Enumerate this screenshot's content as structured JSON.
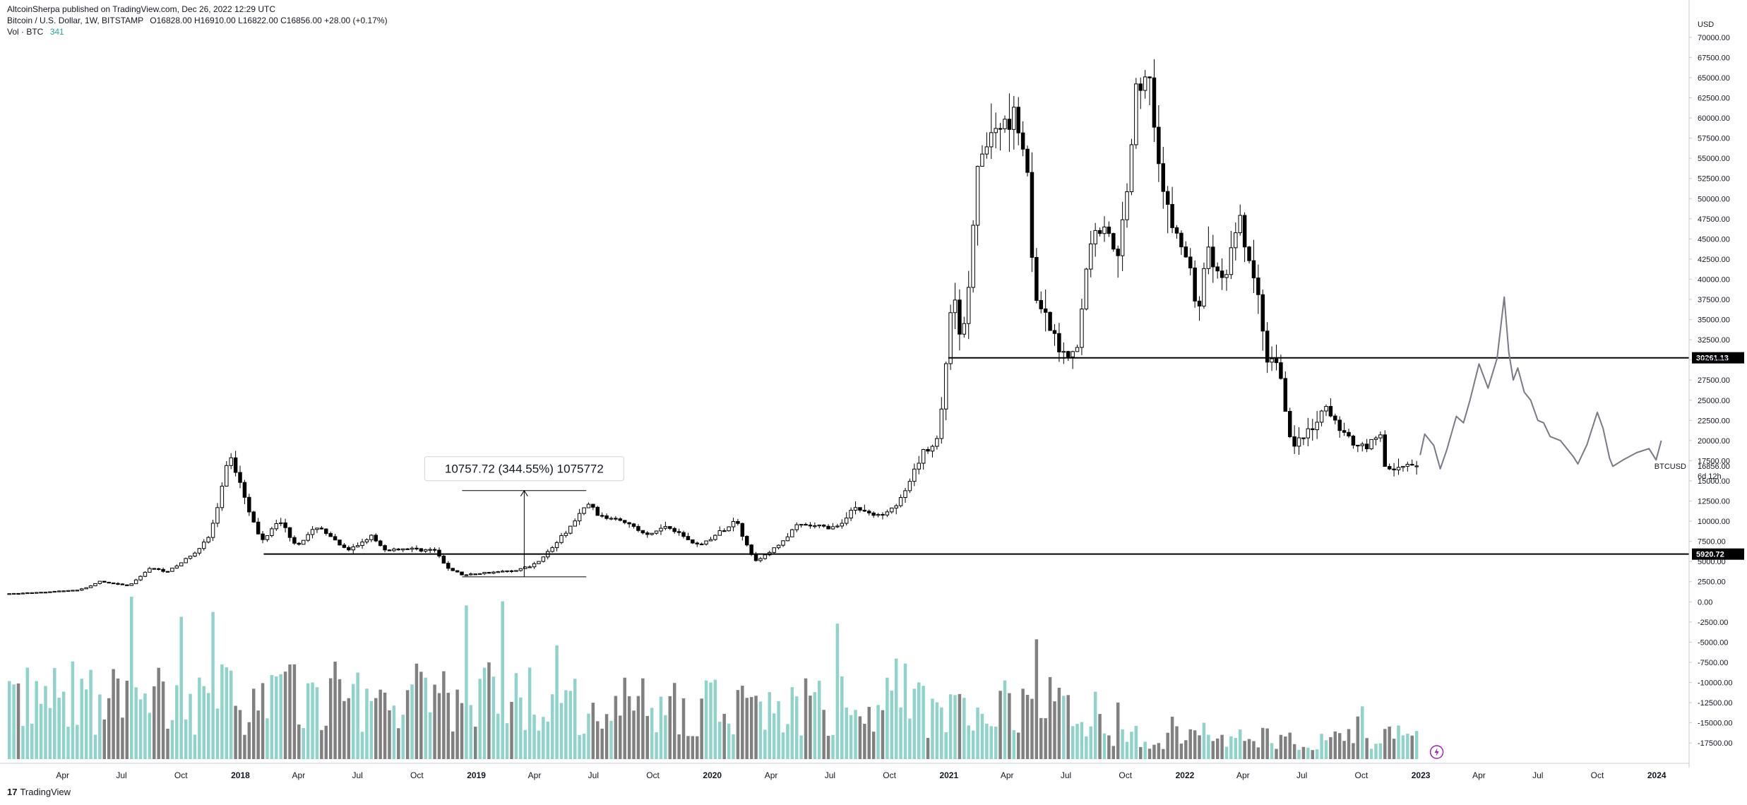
{
  "header": {
    "publisher": "AltcoinSherpa published on TradingView.com, Dec 26, 2022 12:29 UTC",
    "symbol": "Bitcoin / U.S. Dollar, 1W, BITSTAMP",
    "ohlc": "O16828.00  H16910.00  L16822.00  C16856.00  +28.00 (+0.17%)",
    "volume_label": "Vol · BTC",
    "volume_value": "341"
  },
  "footer": {
    "brand_mark": "17",
    "brand_name": "TradingView"
  },
  "colors": {
    "candle_up": "#ffffff",
    "candle_down": "#000000",
    "vol_up": "#8fd3cb",
    "vol_down": "#808080",
    "grid": "#e0e3eb",
    "forecast": "#787b86",
    "line": "#000000"
  },
  "chart_data": {
    "type": "candlestick",
    "timeframe": "1W",
    "currency": "USD",
    "ylim": [
      -19500,
      72000
    ],
    "y_ticks": [
      70000,
      67500,
      65000,
      62500,
      60000,
      57500,
      55000,
      52500,
      50000,
      47500,
      45000,
      42500,
      40000,
      37500,
      35000,
      32500,
      30000,
      27500,
      25000,
      22500,
      20000,
      17500,
      15000,
      12500,
      10000,
      7500,
      5000,
      2500,
      0,
      -2500,
      -5000,
      -7500,
      -10000,
      -12500,
      -15000,
      -17500
    ],
    "y_tick_labels": [
      "70000.00",
      "67500.00",
      "65000.00",
      "62500.00",
      "60000.00",
      "57500.00",
      "55000.00",
      "52500.00",
      "50000.00",
      "47500.00",
      "45000.00",
      "42500.00",
      "40000.00",
      "37500.00",
      "35000.00",
      "32500.00",
      "30000.00",
      "27500.00",
      "25000.00",
      "22500.00",
      "20000.00",
      "17500.00",
      "15000.00",
      "12500.00",
      "10000.00",
      "7500.00",
      "5000.00",
      "2500.00",
      "0.00",
      "-2500.00",
      "-5000.00",
      "-7500.00",
      "-10000.00",
      "-12500.00",
      "-15000.00",
      "-17500.00"
    ],
    "y_axis_unit": "USD",
    "x_range": [
      "2017-01-05",
      "2024-02-20"
    ],
    "x_ticks": [
      {
        "date": "2017-04-01",
        "label": "Apr",
        "bold": false
      },
      {
        "date": "2017-07-01",
        "label": "Jul",
        "bold": false
      },
      {
        "date": "2017-10-01",
        "label": "Oct",
        "bold": false
      },
      {
        "date": "2018-01-01",
        "label": "2018",
        "bold": true
      },
      {
        "date": "2018-04-01",
        "label": "Apr",
        "bold": false
      },
      {
        "date": "2018-07-01",
        "label": "Jul",
        "bold": false
      },
      {
        "date": "2018-10-01",
        "label": "Oct",
        "bold": false
      },
      {
        "date": "2019-01-01",
        "label": "2019",
        "bold": true
      },
      {
        "date": "2019-04-01",
        "label": "Apr",
        "bold": false
      },
      {
        "date": "2019-07-01",
        "label": "Jul",
        "bold": false
      },
      {
        "date": "2019-10-01",
        "label": "Oct",
        "bold": false
      },
      {
        "date": "2020-01-01",
        "label": "2020",
        "bold": true
      },
      {
        "date": "2020-04-01",
        "label": "Apr",
        "bold": false
      },
      {
        "date": "2020-07-01",
        "label": "Jul",
        "bold": false
      },
      {
        "date": "2020-10-01",
        "label": "Oct",
        "bold": false
      },
      {
        "date": "2021-01-01",
        "label": "2021",
        "bold": true
      },
      {
        "date": "2021-04-01",
        "label": "Apr",
        "bold": false
      },
      {
        "date": "2021-07-01",
        "label": "Jul",
        "bold": false
      },
      {
        "date": "2021-10-01",
        "label": "Oct",
        "bold": false
      },
      {
        "date": "2022-01-01",
        "label": "2022",
        "bold": true
      },
      {
        "date": "2022-04-01",
        "label": "Apr",
        "bold": false
      },
      {
        "date": "2022-07-01",
        "label": "Jul",
        "bold": false
      },
      {
        "date": "2022-10-01",
        "label": "Oct",
        "bold": false
      },
      {
        "date": "2023-01-01",
        "label": "2023",
        "bold": true
      },
      {
        "date": "2023-04-01",
        "label": "Apr",
        "bold": false
      },
      {
        "date": "2023-07-01",
        "label": "Jul",
        "bold": false
      },
      {
        "date": "2023-10-01",
        "label": "Oct",
        "bold": false
      },
      {
        "date": "2024-01-01",
        "label": "2024",
        "bold": true
      }
    ],
    "price_anchors": [
      [
        "2017-01-05",
        980
      ],
      [
        "2017-03-01",
        1200
      ],
      [
        "2017-05-01",
        1500
      ],
      [
        "2017-06-01",
        2500
      ],
      [
        "2017-07-15",
        2000
      ],
      [
        "2017-08-15",
        4200
      ],
      [
        "2017-09-15",
        3800
      ],
      [
        "2017-10-15",
        5500
      ],
      [
        "2017-11-15",
        7800
      ],
      [
        "2017-12-17",
        18500
      ],
      [
        "2018-01-07",
        14500
      ],
      [
        "2018-02-06",
        7500
      ],
      [
        "2018-03-05",
        10500
      ],
      [
        "2018-04-01",
        7000
      ],
      [
        "2018-05-05",
        9500
      ],
      [
        "2018-06-20",
        6300
      ],
      [
        "2018-07-25",
        8200
      ],
      [
        "2018-08-15",
        6400
      ],
      [
        "2018-09-15",
        6600
      ],
      [
        "2018-11-01",
        6400
      ],
      [
        "2018-11-20",
        4300
      ],
      [
        "2018-12-15",
        3300
      ],
      [
        "2019-01-15",
        3600
      ],
      [
        "2019-03-01",
        3850
      ],
      [
        "2019-04-01",
        4500
      ],
      [
        "2019-05-15",
        8000
      ],
      [
        "2019-06-26",
        12300
      ],
      [
        "2019-07-15",
        10500
      ],
      [
        "2019-08-15",
        10400
      ],
      [
        "2019-09-26",
        8200
      ],
      [
        "2019-10-26",
        9500
      ],
      [
        "2019-12-15",
        7000
      ],
      [
        "2020-02-12",
        10200
      ],
      [
        "2020-03-12",
        5000
      ],
      [
        "2020-04-15",
        7000
      ],
      [
        "2020-05-15",
        9500
      ],
      [
        "2020-07-15",
        9200
      ],
      [
        "2020-08-10",
        11800
      ],
      [
        "2020-09-15",
        10600
      ],
      [
        "2020-10-21",
        12500
      ],
      [
        "2020-11-25",
        18500
      ],
      [
        "2020-12-15",
        19500
      ],
      [
        "2020-12-31",
        29000
      ],
      [
        "2021-01-10",
        40000
      ],
      [
        "2021-01-25",
        32000
      ],
      [
        "2021-02-20",
        55000
      ],
      [
        "2021-03-15",
        58000
      ],
      [
        "2021-04-14",
        61000
      ],
      [
        "2021-05-05",
        55000
      ],
      [
        "2021-05-19",
        37000
      ],
      [
        "2021-06-01",
        35500
      ],
      [
        "2021-06-22",
        31500
      ],
      [
        "2021-07-20",
        30500
      ],
      [
        "2021-08-10",
        45000
      ],
      [
        "2021-09-07",
        47000
      ],
      [
        "2021-09-21",
        41000
      ],
      [
        "2021-10-20",
        63000
      ],
      [
        "2021-11-10",
        66000
      ],
      [
        "2021-12-05",
        49000
      ],
      [
        "2022-01-10",
        42000
      ],
      [
        "2022-01-24",
        36000
      ],
      [
        "2022-02-10",
        44000
      ],
      [
        "2022-03-01",
        39000
      ],
      [
        "2022-03-30",
        47000
      ],
      [
        "2022-04-25",
        39000
      ],
      [
        "2022-05-10",
        30500
      ],
      [
        "2022-05-31",
        29500
      ],
      [
        "2022-06-18",
        19500
      ],
      [
        "2022-07-10",
        20500
      ],
      [
        "2022-08-12",
        24000
      ],
      [
        "2022-09-10",
        20500
      ],
      [
        "2022-10-10",
        19200
      ],
      [
        "2022-11-05",
        21000
      ],
      [
        "2022-11-10",
        16500
      ],
      [
        "2022-12-26",
        16856
      ]
    ],
    "last_price": 16856.0,
    "last_price_label": "16856.00",
    "countdown_label": "6d 12h",
    "symbol_label": "BTCUSD",
    "horizontal_lines": [
      {
        "value": 30261.13,
        "label": "30261.13",
        "start": "2020-12-31"
      },
      {
        "value": 5920.72,
        "label": "5920.72",
        "start": "2018-02-06"
      }
    ],
    "measure_box": {
      "start": "2018-12-10",
      "end": "2019-06-20",
      "low": 3100,
      "high": 13800,
      "label": "10757.72 (344.55%) 1075772"
    },
    "forecast_path": [
      [
        "2022-12-31",
        18200
      ],
      [
        "2023-01-07",
        20800
      ],
      [
        "2023-01-21",
        19400
      ],
      [
        "2023-01-31",
        16500
      ],
      [
        "2023-02-10",
        18800
      ],
      [
        "2023-02-25",
        23000
      ],
      [
        "2023-03-08",
        22200
      ],
      [
        "2023-03-18",
        25000
      ],
      [
        "2023-04-01",
        29500
      ],
      [
        "2023-04-15",
        26500
      ],
      [
        "2023-04-29",
        30200
      ],
      [
        "2023-05-10",
        37800
      ],
      [
        "2023-05-17",
        31000
      ],
      [
        "2023-05-24",
        27500
      ],
      [
        "2023-05-31",
        29000
      ],
      [
        "2023-06-10",
        26000
      ],
      [
        "2023-06-20",
        25000
      ],
      [
        "2023-07-01",
        22500
      ],
      [
        "2023-07-10",
        22200
      ],
      [
        "2023-07-20",
        20500
      ],
      [
        "2023-08-05",
        20000
      ],
      [
        "2023-08-25",
        18000
      ],
      [
        "2023-09-01",
        17100
      ],
      [
        "2023-09-15",
        19500
      ],
      [
        "2023-10-01",
        23500
      ],
      [
        "2023-10-10",
        21500
      ],
      [
        "2023-10-20",
        17800
      ],
      [
        "2023-10-25",
        16800
      ],
      [
        "2023-11-10",
        17600
      ],
      [
        "2023-12-01",
        18500
      ],
      [
        "2023-12-20",
        19000
      ],
      [
        "2023-12-31",
        17600
      ],
      [
        "2024-01-08",
        20000
      ]
    ]
  }
}
